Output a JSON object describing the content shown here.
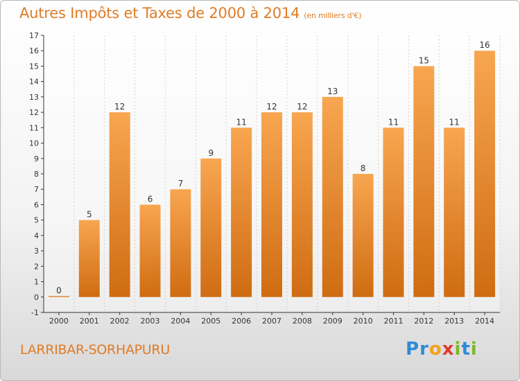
{
  "header": {
    "title": "Autres Impôts et Taxes de 2000 à 2014",
    "subtitle": "(en milliers d'€)"
  },
  "footer": {
    "location": "LARRIBAR-SORHAPURU",
    "logo": [
      "P",
      "r",
      "o",
      "x",
      "i",
      "t",
      "i"
    ]
  },
  "colors": {
    "bar_top": "#f8a650",
    "bar_bottom": "#cf6c12",
    "accent": "#e07b24",
    "axis": "#333333",
    "grid": "#d2d2d2"
  },
  "chart_data": {
    "type": "bar",
    "title": "Autres Impôts et Taxes de 2000 à 2014",
    "subtitle": "(en milliers d'€)",
    "xlabel": "",
    "ylabel": "",
    "categories": [
      "2000",
      "2001",
      "2002",
      "2003",
      "2004",
      "2005",
      "2006",
      "2007",
      "2008",
      "2009",
      "2010",
      "2011",
      "2012",
      "2013",
      "2014"
    ],
    "values": [
      0,
      5,
      12,
      6,
      7,
      9,
      11,
      12,
      12,
      13,
      8,
      11,
      15,
      11,
      16
    ],
    "data_labels": [
      "0",
      "5",
      "12",
      "6",
      "7",
      "9",
      "11",
      "12",
      "12",
      "13",
      "8",
      "11",
      "15",
      "11",
      "16"
    ],
    "yticks": [
      "-1",
      "0",
      "1",
      "2",
      "3",
      "4",
      "5",
      "6",
      "7",
      "8",
      "9",
      "10",
      "11",
      "12",
      "13",
      "14",
      "15",
      "16",
      "17"
    ],
    "ylim": [
      -1,
      17
    ],
    "grid": true,
    "legend": "none"
  }
}
